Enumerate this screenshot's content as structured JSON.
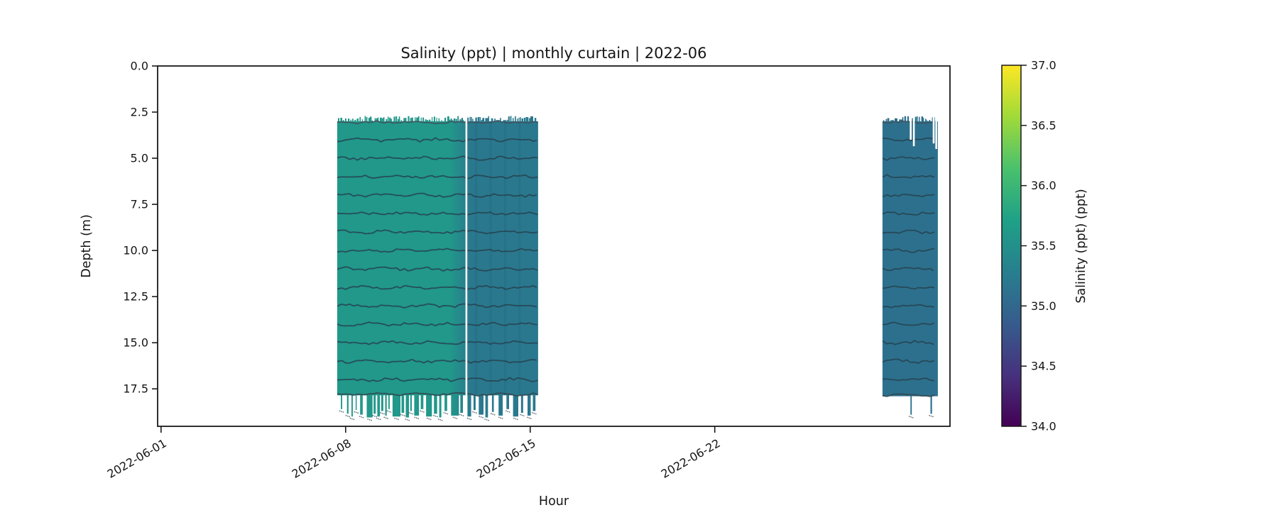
{
  "figure": {
    "background": "#ffffff"
  },
  "chart_data": {
    "type": "heatmap",
    "title": "Salinity (ppt) | monthly curtain | 2022-06",
    "xlabel": "Hour",
    "ylabel": "Depth (m)",
    "x_axis": {
      "tick_labels": [
        "2022-06-01",
        "2022-06-08",
        "2022-06-15",
        "2022-06-22"
      ],
      "tick_days": [
        1,
        8,
        15,
        22
      ],
      "range_days": [
        0.87,
        30.92
      ],
      "label_rotation_deg": 30
    },
    "y_axis": {
      "tick_labels": [
        "0.0",
        "2.5",
        "5.0",
        "7.5",
        "10.0",
        "12.5",
        "15.0",
        "17.5"
      ],
      "tick_values": [
        0,
        2.5,
        5,
        7.5,
        10,
        12.5,
        15,
        17.5
      ],
      "range": [
        0,
        19.53
      ]
    },
    "colorbar": {
      "label": "Salinity (ppt) (ppt)",
      "vmin": 34.0,
      "vmax": 37.0,
      "tick_labels": [
        "37.0",
        "36.5",
        "36.0",
        "35.5",
        "35.0",
        "34.5",
        "34.0"
      ],
      "tick_values": [
        37.0,
        36.5,
        36.0,
        35.5,
        35.0,
        34.5,
        34.0
      ],
      "colormap": "viridis",
      "gradient_stops": [
        "#fde725",
        "#a0da39",
        "#4ac16d",
        "#1fa187",
        "#277f8e",
        "#365c8d",
        "#46327e",
        "#440154"
      ]
    },
    "deployments": [
      {
        "name": "curtain-block-june-08-15",
        "start_day": 7.68,
        "end_day": 15.3,
        "top_depth": 3.0,
        "bottom_depth": 17.85,
        "salinity_values": {
          "left_section_ppt": 35.6,
          "right_section_ppt": 35.2
        },
        "fill_stops": [
          [
            7.68,
            "#21988a"
          ],
          [
            11.95,
            "#21988a"
          ],
          [
            12.75,
            "#2a788e"
          ],
          [
            15.3,
            "#2a788e"
          ]
        ],
        "gaps": [
          {
            "day": 12.58,
            "to_depth": 17.85
          }
        ],
        "trace_depths": [
          4,
          5,
          6,
          7,
          8,
          9,
          10,
          11,
          12,
          13,
          14,
          15,
          16,
          17
        ],
        "shade_days": [
          12.95,
          13.5,
          14.05,
          14.6
        ],
        "top_spike_seed": 11,
        "bottom_spikes": [
          [
            7.82,
            0.05,
            18.6
          ],
          [
            8.05,
            0.06,
            18.85
          ],
          [
            8.22,
            0.05,
            19.0
          ],
          [
            8.38,
            0.04,
            18.65
          ],
          [
            8.55,
            0.1,
            18.9
          ],
          [
            8.8,
            0.22,
            19.05
          ],
          [
            9.06,
            0.08,
            18.85
          ],
          [
            9.2,
            0.1,
            19.0
          ],
          [
            9.35,
            0.08,
            18.7
          ],
          [
            9.5,
            0.06,
            18.95
          ],
          [
            9.62,
            0.05,
            18.6
          ],
          [
            9.78,
            0.3,
            19.0
          ],
          [
            10.12,
            0.1,
            18.8
          ],
          [
            10.28,
            0.12,
            19.05
          ],
          [
            10.45,
            0.06,
            18.7
          ],
          [
            10.6,
            0.18,
            18.95
          ],
          [
            10.85,
            0.1,
            18.6
          ],
          [
            11.05,
            0.22,
            19.0
          ],
          [
            11.35,
            0.12,
            18.85
          ],
          [
            11.55,
            0.08,
            19.05
          ],
          [
            11.75,
            0.1,
            18.7
          ],
          [
            12.0,
            0.3,
            18.95
          ],
          [
            12.35,
            0.1,
            18.8
          ],
          [
            12.62,
            0.14,
            19.0
          ],
          [
            12.85,
            0.08,
            18.65
          ],
          [
            13.05,
            0.18,
            18.9
          ],
          [
            13.3,
            0.1,
            19.05
          ],
          [
            13.55,
            0.07,
            18.75
          ],
          [
            13.8,
            0.16,
            18.95
          ],
          [
            14.1,
            0.1,
            18.6
          ],
          [
            14.35,
            0.2,
            19.0
          ],
          [
            14.65,
            0.08,
            18.8
          ],
          [
            14.9,
            0.12,
            18.95
          ],
          [
            15.1,
            0.1,
            18.7
          ]
        ]
      },
      {
        "name": "curtain-block-june-28-30",
        "start_day": 28.36,
        "end_day": 30.46,
        "top_depth": 3.0,
        "bottom_depth": 17.9,
        "salinity_values": {
          "section_ppt": 35.1
        },
        "fill_stops": [
          [
            28.36,
            "#2d708e"
          ],
          [
            30.46,
            "#2d708e"
          ]
        ],
        "gaps": [
          {
            "day": 29.43,
            "to_depth": 4.0
          },
          {
            "day": 29.55,
            "to_depth": 4.35
          },
          {
            "day": 30.3,
            "to_depth": 4.2
          },
          {
            "day": 30.4,
            "to_depth": 4.5
          }
        ],
        "trace_depths": [
          4,
          5,
          6,
          7,
          8,
          9,
          10,
          11,
          12,
          13,
          14,
          15,
          16,
          17
        ],
        "shade_days": [],
        "top_spike_seed": 23,
        "bottom_spikes": [
          [
            29.42,
            0.05,
            18.9
          ],
          [
            30.18,
            0.06,
            18.85
          ]
        ]
      }
    ],
    "style": {
      "trace_color": "#26424f",
      "edge_trace_color": "#3f525c",
      "speckle_color": "#53636c",
      "spine_color": "#1a1a1a",
      "gap_color": "#ffffff"
    }
  }
}
